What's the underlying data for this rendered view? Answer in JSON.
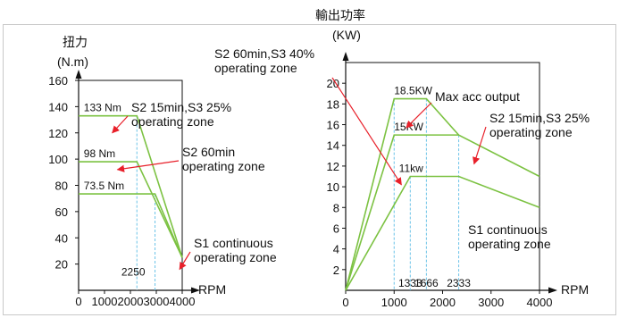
{
  "chart_data": [
    {
      "type": "line",
      "id": "torque",
      "ylabel": "扭力",
      "yunit": "(N.m)",
      "xlabel": "RPM",
      "xlim": [
        0,
        4000
      ],
      "ylim": [
        0,
        160
      ],
      "xticks": [
        0,
        1000,
        2000,
        3000,
        4000
      ],
      "xtick_labels": [
        "0",
        "1000",
        "2000",
        "3000",
        "4000"
      ],
      "yticks": [
        20,
        40,
        60,
        80,
        100,
        120,
        140,
        160
      ],
      "ytick_labels": [
        "20",
        "40",
        "60",
        "80",
        "100",
        "120",
        "140",
        "160"
      ],
      "series": [
        {
          "points": [
            [
              0,
              133
            ],
            [
              2250,
              133
            ],
            [
              4000,
              25
            ]
          ]
        },
        {
          "points": [
            [
              0,
              98
            ],
            [
              2250,
              98
            ],
            [
              4000,
              25
            ]
          ]
        },
        {
          "points": [
            [
              0,
              73.5
            ],
            [
              2950,
              73.5
            ],
            [
              4000,
              25
            ]
          ]
        }
      ],
      "guide_lines": [
        {
          "x": 2250,
          "y_top": 133
        },
        {
          "x": 2950,
          "y_top": 73.5
        }
      ],
      "data_labels": [
        {
          "text": "133 Nm",
          "x": 200,
          "y": 133
        },
        {
          "text": "98 Nm",
          "x": 200,
          "y": 98
        },
        {
          "text": "73.5 Nm",
          "x": 200,
          "y": 73.5
        },
        {
          "text": "2250",
          "x": 1650,
          "y": 8
        }
      ],
      "annotations": [
        {
          "lines": [
            "S2 15min,S3 25%",
            "operating zone"
          ],
          "tip": [
            1300,
            120
          ]
        },
        {
          "lines": [
            "S2 60min",
            "operating zone"
          ],
          "tip": [
            1500,
            92
          ]
        },
        {
          "lines": [
            "S1 continuous",
            "operating zone"
          ],
          "tip": [
            3900,
            16
          ]
        }
      ]
    },
    {
      "type": "line",
      "id": "power",
      "ylabel": "輸出功率",
      "yunit": "(KW)",
      "xlabel": "RPM",
      "xlim": [
        0,
        4000
      ],
      "ylim": [
        0,
        22
      ],
      "xticks": [
        0,
        1000,
        2000,
        3000,
        4000
      ],
      "xtick_labels": [
        "0",
        "1000",
        "2000",
        "3000",
        "4000"
      ],
      "yticks": [
        2,
        4,
        6,
        8,
        10,
        12,
        14,
        16,
        18,
        20
      ],
      "ytick_labels": [
        "2",
        "4",
        "6",
        "8",
        "10",
        "12",
        "14",
        "16",
        "18",
        "20"
      ],
      "series": [
        {
          "points": [
            [
              0,
              0
            ],
            [
              1000,
              18.5
            ],
            [
              1666,
              18.5
            ],
            [
              2333,
              15
            ]
          ]
        },
        {
          "points": [
            [
              0,
              0
            ],
            [
              1000,
              15
            ],
            [
              2333,
              15
            ],
            [
              4000,
              11
            ]
          ]
        },
        {
          "points": [
            [
              0,
              0
            ],
            [
              1333,
              11
            ],
            [
              2333,
              11
            ],
            [
              4000,
              8
            ]
          ]
        }
      ],
      "guide_lines": [
        {
          "x": 1000,
          "y_top": 18.5
        },
        {
          "x": 1333,
          "y_top": 11
        },
        {
          "x": 1666,
          "y_top": 18.5
        },
        {
          "x": 2333,
          "y_top": 15
        }
      ],
      "data_labels": [
        {
          "text": "18.5KW",
          "x": 1000,
          "y": 18.5
        },
        {
          "text": "15KW",
          "x": 1000,
          "y": 15
        },
        {
          "text": "11kw",
          "x": 1100,
          "y": 11
        }
      ],
      "marker_labels": [
        {
          "text": "1333",
          "x": 1333
        },
        {
          "text": "1666",
          "x": 1666
        },
        {
          "text": "2333",
          "x": 2333
        }
      ],
      "annotations": [
        {
          "lines": [
            "S2 60min,S3 40%",
            "operating zone"
          ],
          "tip": [
            1150,
            10.2
          ]
        },
        {
          "lines": [
            "Max acc output"
          ],
          "tip": [
            1250,
            15.7
          ]
        },
        {
          "lines": [
            "S2 15min,S3 25%",
            "operating zone"
          ],
          "tip": [
            2650,
            12.2
          ]
        },
        {
          "lines": [
            "S1 continuous",
            "operating zone"
          ]
        }
      ]
    }
  ],
  "colors": {
    "series": "#7cc242",
    "guide": "#6cc3e8",
    "arrow": "#e8202a",
    "axis": "#111111",
    "frame": "#c8c8c8"
  }
}
